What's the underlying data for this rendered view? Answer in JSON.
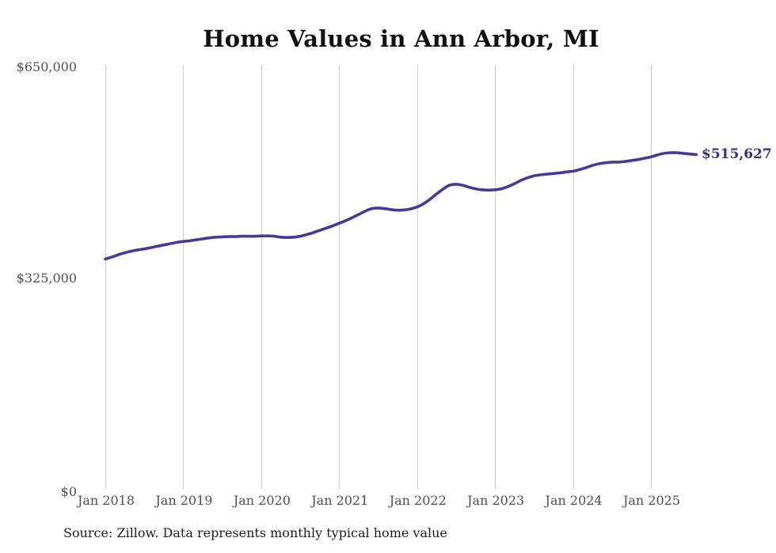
{
  "chart_data": {
    "type": "line",
    "title": "Home Values in Ann Arbor, MI",
    "series_name": "Typical home value",
    "frequency": "monthly",
    "start_month": "Jan 2018",
    "end_month": "Aug 2025",
    "x_ticks": [
      "Jan 2018",
      "Jan 2019",
      "Jan 2020",
      "Jan 2021",
      "Jan 2022",
      "Jan 2023",
      "Jan 2024",
      "Jan 2025"
    ],
    "y_ticks": [
      "$650,000",
      "$325,000",
      "$0"
    ],
    "y_tick_values": [
      650000,
      325000,
      0
    ],
    "ylim": [
      0,
      650000
    ],
    "grid": "vertical-only",
    "legend": "none",
    "latest_value": 515627,
    "latest_value_label": "$515,627",
    "source": "Source: Zillow. Data represents monthly typical home value",
    "line_color": "#403aa3",
    "latest_label_color": "#353087",
    "gridline_color": "#cccccc",
    "axis_text_color": "#4f4f4f",
    "values": [
      355000,
      358000,
      361500,
      364500,
      367000,
      369000,
      370500,
      372500,
      374500,
      376500,
      378500,
      380500,
      382000,
      383000,
      384500,
      386000,
      387500,
      388500,
      389000,
      389500,
      389500,
      390000,
      390000,
      390000,
      390500,
      390500,
      390000,
      388500,
      388000,
      388500,
      390000,
      392500,
      395500,
      399000,
      402500,
      406000,
      410000,
      414000,
      418500,
      423500,
      428500,
      432500,
      433500,
      432500,
      431000,
      430000,
      430500,
      432000,
      435000,
      440000,
      447000,
      455000,
      462500,
      468500,
      470000,
      468500,
      465500,
      463000,
      461500,
      461000,
      461500,
      463000,
      466500,
      471000,
      476000,
      480000,
      483000,
      484500,
      485500,
      486500,
      487500,
      489000,
      490000,
      492500,
      495500,
      499000,
      501500,
      503000,
      504000,
      504000,
      505000,
      506500,
      508000,
      510000,
      512000,
      515000,
      517500,
      518500,
      518500,
      517500,
      516500,
      515627
    ]
  }
}
